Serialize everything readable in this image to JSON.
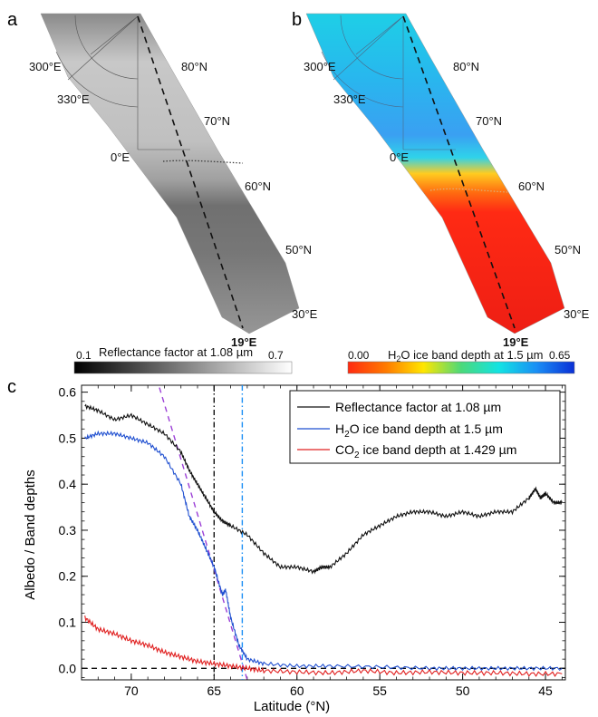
{
  "panels": {
    "a": {
      "label": "a",
      "lon_labels": [
        "300°E",
        "330°E",
        "0°E",
        "30°E",
        "19°E"
      ],
      "lat_labels": [
        "80°N",
        "70°N",
        "60°N",
        "50°N"
      ],
      "colorbar": {
        "min": "0.1",
        "max": "0.7",
        "title": "Reflectance factor at 1.08 µm",
        "colors": [
          "#000000",
          "#ffffff"
        ]
      }
    },
    "b": {
      "label": "b",
      "lon_labels": [
        "300°E",
        "330°E",
        "0°E",
        "30°E",
        "19°E"
      ],
      "lat_labels": [
        "80°N",
        "70°N",
        "60°N",
        "50°N"
      ],
      "colorbar": {
        "min": "0.00",
        "max": "0.65",
        "title_pre": "H",
        "title_sub": "2",
        "title_post": "O ice band depth at 1.5 µm",
        "colors": [
          "#ff2a10",
          "#ff7a00",
          "#ffe600",
          "#4bd97a",
          "#12e3e3",
          "#1a8ef5",
          "#0a2fd6"
        ]
      }
    }
  },
  "chart_data": {
    "label": "c",
    "type": "line",
    "xlabel": "Latitude (°N)",
    "ylabel": "Albedo / Band depths",
    "xlim": [
      73,
      43.8
    ],
    "ylim": [
      -0.025,
      0.615
    ],
    "xticks": [
      "70",
      "65",
      "60",
      "55",
      "50",
      "45"
    ],
    "yticks": [
      "0.0",
      "0.1",
      "0.2",
      "0.3",
      "0.4",
      "0.5",
      "0.6"
    ],
    "legend_position": "top-right",
    "series": [
      {
        "name": "Reflectance factor at 1.08 µm",
        "color": "#111111",
        "x": [
          72.8,
          72.0,
          71.0,
          70.0,
          69.0,
          68.0,
          67.0,
          66.5,
          66.0,
          65.5,
          65.0,
          64.5,
          64.0,
          63.0,
          62.0,
          61.0,
          60.0,
          59.0,
          58.5,
          58.0,
          57.0,
          56.0,
          55.0,
          54.0,
          53.0,
          52.0,
          51.0,
          50.0,
          49.0,
          48.0,
          47.0,
          46.0,
          45.6,
          45.3,
          45.0,
          44.5,
          44.0
        ],
        "y": [
          0.57,
          0.56,
          0.54,
          0.55,
          0.53,
          0.51,
          0.47,
          0.43,
          0.4,
          0.37,
          0.34,
          0.32,
          0.31,
          0.29,
          0.25,
          0.22,
          0.22,
          0.21,
          0.22,
          0.22,
          0.25,
          0.29,
          0.31,
          0.33,
          0.34,
          0.34,
          0.33,
          0.34,
          0.33,
          0.34,
          0.34,
          0.37,
          0.39,
          0.37,
          0.38,
          0.36,
          0.36
        ]
      },
      {
        "name_pre": "H",
        "name_sub": "2",
        "name_post": "O ice band depth at 1.5 µm",
        "color": "#1f4fd0",
        "x": [
          72.8,
          72.0,
          71.0,
          70.0,
          69.0,
          68.0,
          67.0,
          66.5,
          66.0,
          65.5,
          65.0,
          64.5,
          64.3,
          64.0,
          63.5,
          63.0,
          62.0,
          60.0,
          58.0,
          55.0,
          52.0,
          50.0,
          48.0,
          46.0,
          44.0
        ],
        "y": [
          0.5,
          0.51,
          0.51,
          0.5,
          0.49,
          0.46,
          0.4,
          0.33,
          0.3,
          0.26,
          0.22,
          0.16,
          0.17,
          0.11,
          0.05,
          0.02,
          0.01,
          0.005,
          0.005,
          0.003,
          0.0,
          0.0,
          0.0,
          0.0,
          0.0
        ]
      },
      {
        "name_pre": "CO",
        "name_sub": "2",
        "name_post": " ice band depth at 1.429 µm",
        "color": "#e02020",
        "x": [
          72.8,
          72.0,
          71.0,
          70.0,
          69.0,
          68.0,
          67.0,
          66.0,
          65.0,
          64.0,
          63.0,
          62.0,
          60.0,
          58.0,
          56.0,
          54.0,
          52.0,
          50.0,
          48.0,
          46.0,
          44.0
        ],
        "y": [
          0.11,
          0.085,
          0.075,
          0.06,
          0.05,
          0.035,
          0.025,
          0.015,
          0.01,
          0.005,
          0.0,
          -0.005,
          -0.008,
          -0.01,
          -0.005,
          -0.01,
          -0.008,
          -0.01,
          -0.01,
          -0.012,
          -0.012
        ]
      }
    ],
    "reference_lines": [
      {
        "kind": "vertical",
        "x": 65.0,
        "style": "dash-dot",
        "color": "#111111"
      },
      {
        "kind": "vertical",
        "x": 63.3,
        "style": "dash-dot",
        "color": "#1a8ef5"
      },
      {
        "kind": "horizontal",
        "y": 0.0,
        "style": "dashed",
        "color": "#111111"
      },
      {
        "kind": "fit",
        "x": [
          68.3,
          63.0
        ],
        "y": [
          0.61,
          -0.025
        ],
        "style": "dashed",
        "color": "#9b3fd6"
      }
    ]
  }
}
